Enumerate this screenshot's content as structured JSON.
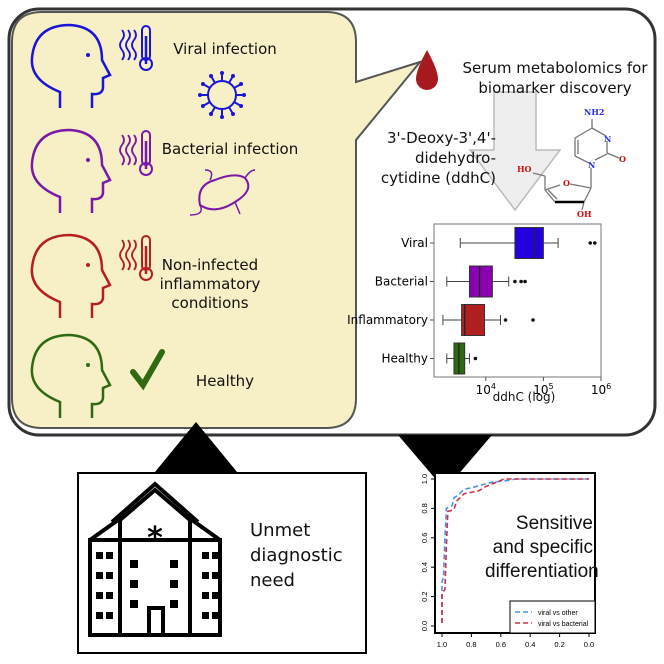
{
  "conditions": [
    {
      "label": "Viral infection",
      "color": "#1a14d6"
    },
    {
      "label": "Bacterial infection",
      "color": "#7a18a8"
    },
    {
      "label": "Non-infected inflammatory conditions",
      "color": "#b51f1f"
    },
    {
      "label": "Healthy",
      "color": "#2f6a12"
    }
  ],
  "panel_fill": "#f7f0c6",
  "serum_text": "Serum metabolomics for biomarker discovery",
  "compound_text": "3'-Deoxy-3',4'-didehydro-cytidine (ddhC)",
  "molecule_labels": {
    "nh2": "NH2",
    "n1": "N",
    "n3": "N",
    "o_carbonyl": "O",
    "ho": "HO",
    "o_ring": "O",
    "oh": "OH"
  },
  "hospital_text": "Unmet diagnostic need",
  "result_text": "Sensitive and specific differentiation",
  "chart_data": [
    {
      "type": "boxplot",
      "orientation": "horizontal",
      "xlabel": "ddhC (log)",
      "xscale": "log",
      "xlim": [
        1260,
        1000000
      ],
      "xticks": [
        "10^4",
        "10^5",
        "10^6"
      ],
      "xtick_values": [
        10000,
        100000,
        1000000
      ],
      "categories": [
        "Viral",
        "Bacterial",
        "Inflammatory",
        "Healthy"
      ],
      "boxes": [
        {
          "name": "Viral",
          "whisker_low": 3600,
          "q1": 32000,
          "median": 69000,
          "q3": 100000,
          "whisker_high": 180000,
          "outliers": [
            650000,
            780000
          ],
          "color": "#2200e0"
        },
        {
          "name": "Bacterial",
          "whisker_low": 2100,
          "q1": 5200,
          "median": 7800,
          "q3": 13000,
          "whisker_high": 25000,
          "outliers": [
            32000,
            41000,
            48000
          ],
          "color": "#8a00b0"
        },
        {
          "name": "Inflammatory",
          "whisker_low": 1800,
          "q1": 3800,
          "median": 4300,
          "q3": 9500,
          "whisker_high": 18000,
          "outliers": [
            22000,
            66000
          ],
          "color": "#b02020"
        },
        {
          "name": "Healthy",
          "whisker_low": 2100,
          "q1": 2800,
          "median": 3400,
          "q3": 4300,
          "whisker_high": 5200,
          "outliers": [
            6600
          ],
          "color": "#2c6a10"
        }
      ]
    },
    {
      "type": "line",
      "xlim": [
        1.0,
        0.0
      ],
      "ylim": [
        0.0,
        1.0
      ],
      "xticks": [
        "1.0",
        "0.8",
        "0.6",
        "0.4",
        "0.2",
        "0.0"
      ],
      "yticks": [
        "0.0",
        "0.2",
        "0.4",
        "0.6",
        "0.8",
        "1.0"
      ],
      "legend": "bottom-right",
      "series": [
        {
          "name": "viral vs other",
          "color": "#4a90e8",
          "dash": "dashed",
          "x": [
            1,
            1,
            0.99,
            0.98,
            0.97,
            0.93,
            0.92,
            0.88,
            0.85,
            0.8,
            0.73,
            0.65,
            0.55,
            0.5,
            0
          ],
          "y": [
            0.02,
            0.3,
            0.33,
            0.6,
            0.8,
            0.82,
            0.87,
            0.9,
            0.93,
            0.94,
            0.96,
            0.98,
            0.99,
            1,
            1
          ]
        },
        {
          "name": "viral vs bacterial",
          "color": "#d03040",
          "dash": "dashed",
          "x": [
            1,
            1,
            0.98,
            0.97,
            0.96,
            0.92,
            0.9,
            0.85,
            0.75,
            0.7,
            0.6,
            0.58,
            0
          ],
          "y": [
            0.02,
            0.22,
            0.25,
            0.55,
            0.78,
            0.79,
            0.85,
            0.9,
            0.92,
            0.95,
            0.99,
            1,
            1
          ]
        }
      ]
    }
  ]
}
